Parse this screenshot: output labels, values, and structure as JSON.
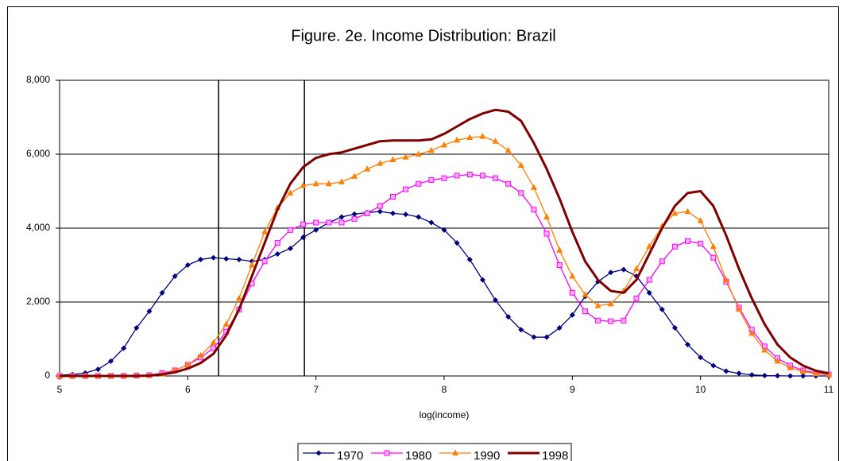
{
  "chart_data": {
    "type": "line",
    "title": "Figure. 2e. Income Distribution: Brazil",
    "xlabel": "log(income)",
    "x": [
      5.0,
      5.1,
      5.2,
      5.3,
      5.4,
      5.5,
      5.6,
      5.7,
      5.8,
      5.9,
      6.0,
      6.1,
      6.2,
      6.3,
      6.4,
      6.5,
      6.6,
      6.7,
      6.8,
      6.9,
      7.0,
      7.1,
      7.2,
      7.3,
      7.4,
      7.5,
      7.6,
      7.7,
      7.8,
      7.9,
      8.0,
      8.1,
      8.2,
      8.3,
      8.4,
      8.5,
      8.6,
      8.7,
      8.8,
      8.9,
      9.0,
      9.1,
      9.2,
      9.3,
      9.4,
      9.5,
      9.6,
      9.7,
      9.8,
      9.9,
      10.0,
      10.1,
      10.2,
      10.3,
      10.4,
      10.5,
      10.6,
      10.7,
      10.8,
      10.9,
      11.0
    ],
    "series": [
      {
        "name": "1970",
        "color": "#000080",
        "marker": "diamond",
        "width": 1.3,
        "values": [
          20,
          40,
          80,
          180,
          400,
          750,
          1300,
          1750,
          2250,
          2700,
          3000,
          3150,
          3200,
          3170,
          3150,
          3100,
          3150,
          3300,
          3450,
          3750,
          3950,
          4150,
          4300,
          4380,
          4420,
          4450,
          4400,
          4370,
          4300,
          4150,
          3950,
          3600,
          3150,
          2600,
          2050,
          1600,
          1250,
          1050,
          1050,
          1300,
          1650,
          2150,
          2550,
          2800,
          2880,
          2700,
          2250,
          1800,
          1300,
          850,
          500,
          280,
          130,
          70,
          30,
          10,
          5,
          0,
          0,
          0,
          0
        ]
      },
      {
        "name": "1980",
        "color": "#ff00ff",
        "marker": "square",
        "width": 1.3,
        "values": [
          0,
          0,
          0,
          0,
          0,
          0,
          10,
          20,
          80,
          150,
          300,
          500,
          750,
          1200,
          1800,
          2500,
          3100,
          3600,
          3950,
          4100,
          4150,
          4150,
          4150,
          4250,
          4400,
          4600,
          4850,
          5050,
          5200,
          5300,
          5350,
          5420,
          5450,
          5420,
          5350,
          5200,
          4950,
          4500,
          3850,
          3000,
          2250,
          1750,
          1500,
          1480,
          1500,
          2100,
          2600,
          3100,
          3500,
          3650,
          3580,
          3200,
          2550,
          1850,
          1250,
          800,
          480,
          280,
          150,
          80,
          40
        ]
      },
      {
        "name": "1990",
        "color": "#ff8000",
        "marker": "triangle",
        "width": 1.3,
        "values": [
          0,
          0,
          0,
          0,
          0,
          0,
          10,
          20,
          50,
          150,
          300,
          550,
          900,
          1400,
          2100,
          3000,
          3900,
          4550,
          4950,
          5150,
          5200,
          5200,
          5250,
          5400,
          5600,
          5750,
          5850,
          5920,
          6000,
          6100,
          6250,
          6380,
          6450,
          6480,
          6350,
          6100,
          5700,
          5100,
          4300,
          3400,
          2700,
          2200,
          1900,
          1950,
          2300,
          2900,
          3500,
          4050,
          4400,
          4450,
          4200,
          3500,
          2600,
          1800,
          1150,
          700,
          400,
          220,
          120,
          60,
          30
        ]
      },
      {
        "name": "1998",
        "color": "#800000",
        "marker": "none",
        "width": 3,
        "values": [
          0,
          0,
          0,
          0,
          0,
          0,
          0,
          10,
          40,
          100,
          200,
          350,
          600,
          1100,
          1800,
          2700,
          3600,
          4500,
          5200,
          5650,
          5900,
          6000,
          6050,
          6150,
          6250,
          6350,
          6370,
          6370,
          6370,
          6400,
          6550,
          6750,
          6950,
          7100,
          7200,
          7150,
          6900,
          6300,
          5600,
          4800,
          3900,
          3100,
          2600,
          2300,
          2250,
          2600,
          3300,
          4000,
          4600,
          4950,
          5000,
          4600,
          3800,
          2900,
          2100,
          1400,
          850,
          500,
          280,
          140,
          70
        ]
      }
    ],
    "vlines": [
      6.24,
      6.91
    ],
    "xlim": [
      5,
      11
    ],
    "xticks": [
      5,
      6,
      7,
      8,
      9,
      10,
      11
    ],
    "ylim": [
      0,
      8000
    ],
    "yticks": [
      0,
      {
        "value": 2000,
        "label": "2,000"
      },
      {
        "value": 4000,
        "label": "4,000"
      },
      {
        "value": 6000,
        "label": "6,000"
      },
      {
        "value": 8000,
        "label": "8,000"
      }
    ],
    "grid": true,
    "legend": "bottom"
  }
}
